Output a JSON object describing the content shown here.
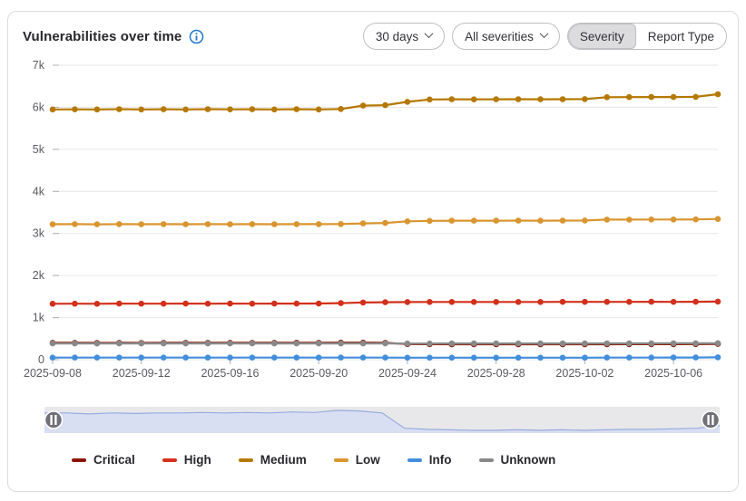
{
  "header": {
    "title": "Vulnerabilities over time"
  },
  "controls": {
    "days_dropdown": {
      "label": "30 days"
    },
    "severities_dropdown": {
      "label": "All severities"
    },
    "segmented": {
      "options": [
        "Severity",
        "Report Type"
      ],
      "selected": "Severity"
    }
  },
  "colors": {
    "accent_blue": "#1f75cb",
    "border": "#dcdcde",
    "grid": "#e6e6e9",
    "axis_text": "#5b5a60",
    "slider_track": "#e8e8ea",
    "slider_area_fill": "#d9dff2",
    "slider_area_line": "#98abde",
    "slider_handle": "#717078"
  },
  "chart_data": {
    "type": "line",
    "title": "Vulnerabilities over time",
    "xlabel": "",
    "ylabel": "",
    "ylim": [
      0,
      7000
    ],
    "grid": true,
    "legend_position": "bottom",
    "x": [
      "2025-09-08",
      "2025-09-09",
      "2025-09-10",
      "2025-09-11",
      "2025-09-12",
      "2025-09-13",
      "2025-09-14",
      "2025-09-15",
      "2025-09-16",
      "2025-09-17",
      "2025-09-18",
      "2025-09-19",
      "2025-09-20",
      "2025-09-21",
      "2025-09-22",
      "2025-09-23",
      "2025-09-24",
      "2025-09-25",
      "2025-09-26",
      "2025-09-27",
      "2025-09-28",
      "2025-09-29",
      "2025-09-30",
      "2025-10-01",
      "2025-10-02",
      "2025-10-03",
      "2025-10-04",
      "2025-10-05",
      "2025-10-06",
      "2025-10-07",
      "2025-10-08"
    ],
    "x_tick_indices": [
      0,
      4,
      8,
      12,
      16,
      20,
      24,
      28
    ],
    "x_tick_labels": [
      "2025-09-08",
      "2025-09-12",
      "2025-09-16",
      "2025-09-20",
      "2025-09-24",
      "2025-09-28",
      "2025-10-02",
      "2025-10-06"
    ],
    "y_ticks": [
      {
        "value": 0,
        "label": "0"
      },
      {
        "value": 1000,
        "label": "1k"
      },
      {
        "value": 2000,
        "label": "2k"
      },
      {
        "value": 3000,
        "label": "3k"
      },
      {
        "value": 4000,
        "label": "4k"
      },
      {
        "value": 5000,
        "label": "5k"
      },
      {
        "value": 6000,
        "label": "6k"
      },
      {
        "value": 7000,
        "label": "7k"
      }
    ],
    "series": [
      {
        "name": "Critical",
        "color": "#8a1501",
        "values": [
          400,
          400,
          398,
          400,
          399,
          400,
          400,
          401,
          400,
          401,
          400,
          402,
          401,
          405,
          404,
          400,
          370,
          368,
          367,
          366,
          366,
          367,
          366,
          367,
          366,
          367,
          368,
          368,
          369,
          370,
          375
        ]
      },
      {
        "name": "High",
        "color": "#d2301b",
        "values": [
          1330,
          1332,
          1330,
          1333,
          1331,
          1332,
          1333,
          1332,
          1333,
          1332,
          1333,
          1334,
          1335,
          1345,
          1358,
          1365,
          1370,
          1372,
          1372,
          1372,
          1373,
          1373,
          1373,
          1374,
          1375,
          1374,
          1375,
          1376,
          1375,
          1376,
          1380
        ]
      },
      {
        "name": "Medium",
        "color": "#b57800",
        "values": [
          5950,
          5952,
          5948,
          5955,
          5950,
          5953,
          5950,
          5955,
          5951,
          5954,
          5950,
          5955,
          5950,
          5960,
          6040,
          6050,
          6130,
          6185,
          6190,
          6188,
          6190,
          6192,
          6190,
          6192,
          6195,
          6240,
          6242,
          6243,
          6245,
          6248,
          6310
        ]
      },
      {
        "name": "Low",
        "color": "#d99530",
        "values": [
          3220,
          3222,
          3218,
          3222,
          3220,
          3222,
          3220,
          3223,
          3220,
          3222,
          3221,
          3223,
          3222,
          3225,
          3240,
          3250,
          3290,
          3300,
          3303,
          3305,
          3305,
          3306,
          3305,
          3306,
          3308,
          3330,
          3330,
          3332,
          3333,
          3334,
          3345
        ]
      },
      {
        "name": "Info",
        "color": "#428fdc",
        "values": [
          50,
          50,
          50,
          50,
          50,
          50,
          50,
          50,
          50,
          50,
          50,
          50,
          50,
          50,
          50,
          50,
          48,
          48,
          48,
          48,
          48,
          48,
          48,
          48,
          48,
          50,
          50,
          50,
          52,
          52,
          55
        ]
      },
      {
        "name": "Unknown",
        "color": "#898989",
        "values": [
          385,
          385,
          384,
          385,
          385,
          385,
          385,
          386,
          385,
          385,
          385,
          386,
          385,
          386,
          386,
          386,
          384,
          384,
          385,
          385,
          385,
          386,
          386,
          386,
          386,
          387,
          388,
          388,
          389,
          389,
          392
        ]
      }
    ],
    "slider": {
      "shadow_series": "Critical",
      "range_selected": "full"
    }
  }
}
